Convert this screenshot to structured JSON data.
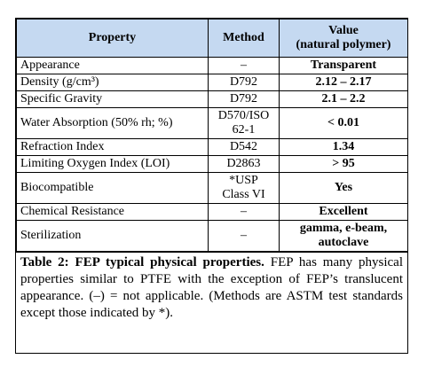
{
  "table": {
    "headers": {
      "property": "Property",
      "method": "Method",
      "value_line1": "Value",
      "value_line2": "(natural polymer)"
    },
    "rows": [
      {
        "property": "Appearance",
        "method": "–",
        "value": "Transparent"
      },
      {
        "property": "Density (g/cm³)",
        "method": "D792",
        "value": "2.12 – 2.17"
      },
      {
        "property": "Specific Gravity",
        "method": "D792",
        "value": "2.1 – 2.2"
      },
      {
        "property": "Water Absorption (50% rh; %)",
        "method_line1": "D570/ISO",
        "method_line2": "62-1",
        "value": "< 0.01"
      },
      {
        "property": "Refraction Index",
        "method": "D542",
        "value": "1.34"
      },
      {
        "property": "Limiting Oxygen Index (LOI)",
        "method": "D2863",
        "value": "> 95"
      },
      {
        "property": "Biocompatible",
        "method_line1": "*USP",
        "method_line2": "Class VI",
        "value": "Yes"
      },
      {
        "property": "Chemical Resistance",
        "method": "–",
        "value": "Excellent"
      },
      {
        "property": "Sterilization",
        "method": "–",
        "value_line1": "gamma, e-beam,",
        "value_line2": "autoclave"
      }
    ]
  },
  "caption": {
    "label": "Table 2: FEP typical physical properties.",
    "text": " FEP has many physical properties similar to PTFE with the exception of FEP’s translucent appearance. (–) = not applicable. (Methods are ASTM test standards except those indicated by *)."
  },
  "colors": {
    "header_bg": "#c5d9f1",
    "border": "#000000"
  }
}
